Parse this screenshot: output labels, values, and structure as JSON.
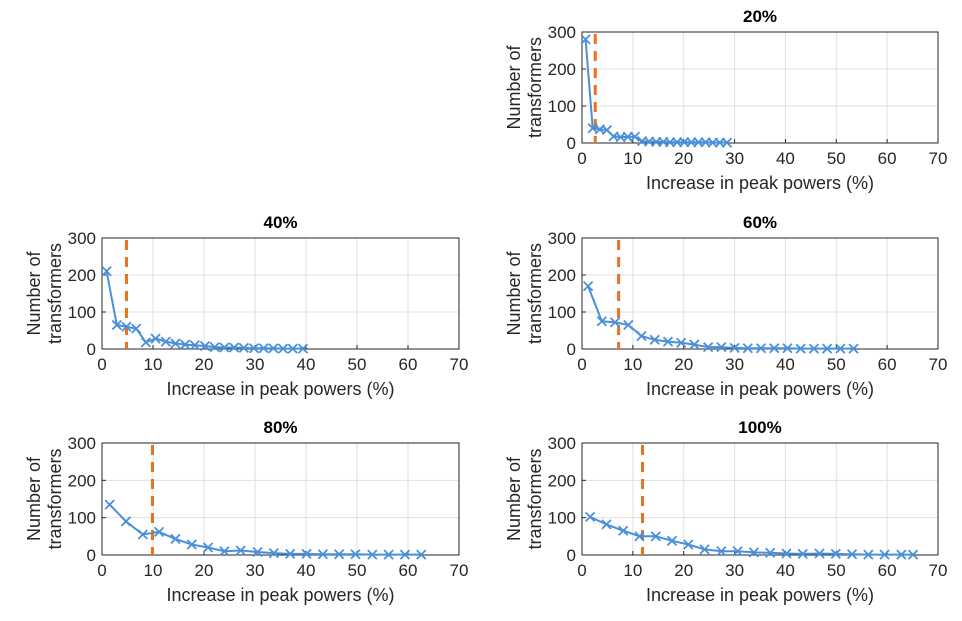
{
  "colors": {
    "series": "#4a90d9",
    "threshold": "#e8731f",
    "axis": "#262626",
    "grid": "#dfdfdf"
  },
  "chart_data": [
    {
      "type": "line",
      "title": "20%",
      "xlabel": "Increase in peak powers (%)",
      "ylabel": [
        "Number of",
        "transformers"
      ],
      "xlim": [
        0,
        70
      ],
      "ylim": [
        0,
        300
      ],
      "xticks": [
        0,
        10,
        20,
        30,
        40,
        50,
        60,
        70
      ],
      "yticks": [
        0,
        100,
        200,
        300
      ],
      "grid": true,
      "threshold_x": 2.6,
      "x": [
        0.7,
        2.1,
        3.5,
        4.9,
        6.2,
        7.6,
        9.0,
        10.4,
        11.8,
        13.2,
        14.6,
        16.0,
        17.3,
        18.7,
        20.1,
        21.5,
        22.9,
        24.3,
        25.7,
        27.1,
        28.5
      ],
      "y": [
        280,
        40,
        37,
        35,
        18,
        16,
        17,
        17,
        5,
        4,
        3,
        3,
        2,
        2,
        2,
        2,
        2,
        2,
        1,
        1,
        1
      ]
    },
    {
      "type": "line",
      "title": "40%",
      "xlabel": "Increase in peak powers (%)",
      "ylabel": [
        "Number of",
        "transformers"
      ],
      "xlim": [
        0,
        70
      ],
      "ylim": [
        0,
        300
      ],
      "xticks": [
        0,
        10,
        20,
        30,
        40,
        50,
        60,
        70
      ],
      "yticks": [
        0,
        100,
        200,
        300
      ],
      "grid": true,
      "threshold_x": 4.8,
      "x": [
        0.9,
        2.9,
        4.8,
        6.7,
        8.6,
        10.5,
        12.5,
        14.4,
        16.3,
        18.2,
        20.2,
        22.1,
        24.0,
        25.9,
        27.8,
        29.8,
        31.7,
        33.6,
        35.5,
        37.4,
        39.4
      ],
      "y": [
        210,
        65,
        60,
        55,
        18,
        28,
        20,
        15,
        12,
        10,
        8,
        5,
        4,
        4,
        3,
        2,
        2,
        2,
        1,
        1,
        1
      ]
    },
    {
      "type": "line",
      "title": "60%",
      "xlabel": "Increase in peak powers (%)",
      "ylabel": [
        "Number of",
        "transformers"
      ],
      "xlim": [
        0,
        70
      ],
      "ylim": [
        0,
        300
      ],
      "xticks": [
        0,
        10,
        20,
        30,
        40,
        50,
        60,
        70
      ],
      "yticks": [
        0,
        100,
        200,
        300
      ],
      "grid": true,
      "threshold_x": 7.2,
      "x": [
        1.2,
        3.9,
        6.5,
        9.1,
        11.7,
        14.3,
        16.9,
        19.5,
        22.1,
        24.8,
        27.4,
        30.0,
        32.6,
        35.2,
        37.8,
        40.4,
        43.0,
        45.6,
        48.2,
        50.8,
        53.4
      ],
      "y": [
        170,
        75,
        72,
        65,
        35,
        25,
        20,
        17,
        12,
        5,
        5,
        3,
        2,
        2,
        2,
        2,
        1,
        1,
        1,
        1,
        1
      ]
    },
    {
      "type": "line",
      "title": "80%",
      "xlabel": "Increase in peak powers (%)",
      "ylabel": [
        "Number of",
        "transformers"
      ],
      "xlim": [
        0,
        70
      ],
      "ylim": [
        0,
        300
      ],
      "xticks": [
        0,
        10,
        20,
        30,
        40,
        50,
        60,
        70
      ],
      "yticks": [
        0,
        100,
        200,
        300
      ],
      "grid": true,
      "threshold_x": 9.9,
      "x": [
        1.5,
        4.7,
        8.0,
        11.2,
        14.4,
        17.6,
        20.8,
        24.0,
        27.2,
        30.5,
        33.7,
        36.9,
        40.1,
        43.3,
        46.5,
        49.7,
        53.0,
        56.2,
        59.4,
        62.6
      ],
      "y": [
        135,
        90,
        55,
        62,
        43,
        28,
        20,
        10,
        12,
        8,
        5,
        3,
        3,
        2,
        2,
        2,
        1,
        1,
        1,
        1
      ]
    },
    {
      "type": "line",
      "title": "100%",
      "xlabel": "Increase in peak powers (%)",
      "ylabel": [
        "Number of",
        "transformers"
      ],
      "xlim": [
        0,
        70
      ],
      "ylim": [
        0,
        300
      ],
      "xticks": [
        0,
        10,
        20,
        30,
        40,
        50,
        60,
        70
      ],
      "yticks": [
        0,
        100,
        200,
        300
      ],
      "grid": true,
      "threshold_x": 11.9,
      "x": [
        1.6,
        4.8,
        8.1,
        11.3,
        14.5,
        17.7,
        20.9,
        24.1,
        27.4,
        30.6,
        33.8,
        37.0,
        40.2,
        43.4,
        46.7,
        49.9,
        53.1,
        56.3,
        59.5,
        62.8,
        65.1
      ],
      "y": [
        102,
        82,
        65,
        50,
        50,
        38,
        28,
        15,
        10,
        10,
        7,
        6,
        4,
        3,
        4,
        3,
        2,
        1,
        1,
        1,
        1
      ]
    }
  ]
}
